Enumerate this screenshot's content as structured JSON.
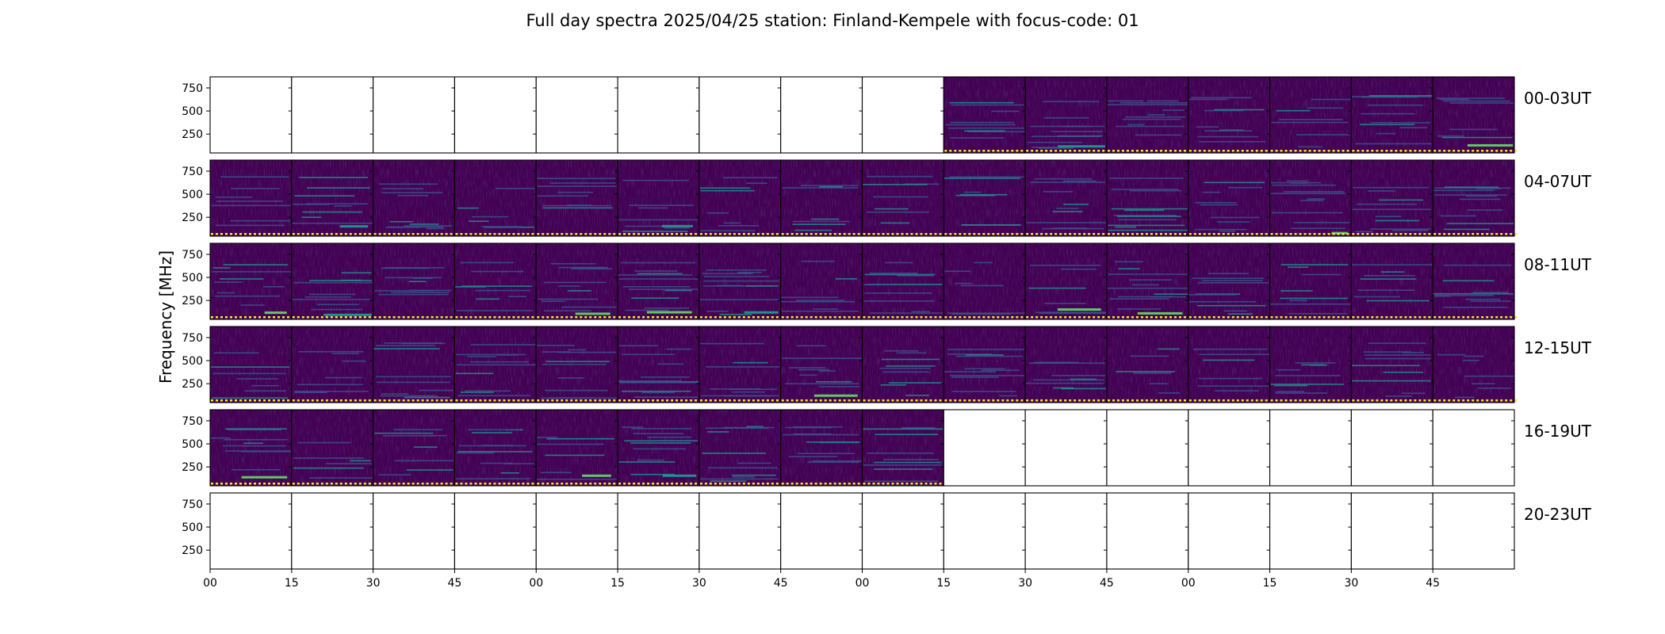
{
  "chart_data": {
    "type": "heatmap",
    "title": "Full day spectra 2025/04/25 station: Finland-Kempele with focus-code: 01",
    "ylabel": "Frequency [MHz]",
    "xlabel": "",
    "ylim": [
      45,
      870
    ],
    "y_ticks": [
      250,
      500,
      750
    ],
    "x_ticks": [
      "00",
      "15",
      "30",
      "45",
      "00",
      "15",
      "30",
      "45",
      "00",
      "15",
      "30",
      "45",
      "00",
      "15",
      "30",
      "45"
    ],
    "colormap": [
      "#440154",
      "#3b528b",
      "#21918c",
      "#5ec962",
      "#fde725"
    ],
    "rows": [
      {
        "label": "00-03UT",
        "data_panels": [
          9,
          10,
          11,
          12,
          13,
          14,
          15
        ]
      },
      {
        "label": "04-07UT",
        "data_panels": [
          0,
          1,
          2,
          3,
          4,
          5,
          6,
          7,
          8,
          9,
          10,
          11,
          12,
          13,
          14,
          15
        ]
      },
      {
        "label": "08-11UT",
        "data_panels": [
          0,
          1,
          2,
          3,
          4,
          5,
          6,
          7,
          8,
          9,
          10,
          11,
          12,
          13,
          14,
          15
        ]
      },
      {
        "label": "12-15UT",
        "data_panels": [
          0,
          1,
          2,
          3,
          4,
          5,
          6,
          7,
          8,
          9,
          10,
          11,
          12,
          13,
          14,
          15
        ]
      },
      {
        "label": "16-19UT",
        "data_panels": [
          0,
          1,
          2,
          3,
          4,
          5,
          6,
          7,
          8
        ]
      },
      {
        "label": "20-23UT",
        "data_panels": []
      }
    ]
  }
}
